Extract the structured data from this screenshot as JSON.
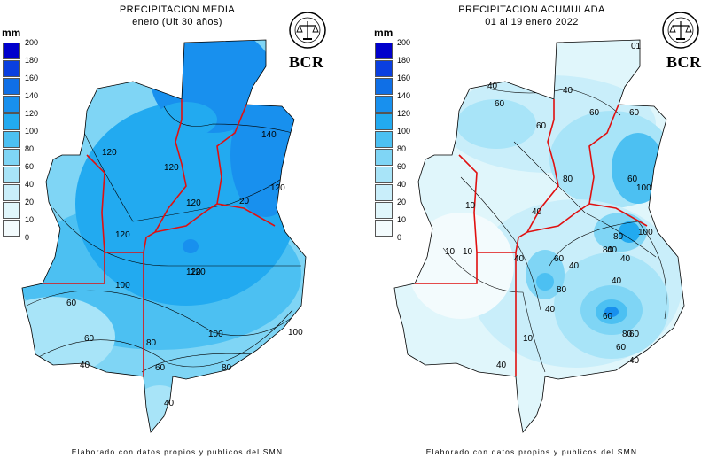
{
  "legend": {
    "unit": "mm",
    "ticks": [
      "200",
      "180",
      "160",
      "140",
      "120",
      "100",
      "80",
      "60",
      "40",
      "20",
      "10",
      "0"
    ],
    "colors": [
      "#0000cc",
      "#0a3fe0",
      "#0f6fe6",
      "#1890ee",
      "#22aaf0",
      "#4cc0f2",
      "#7fd5f5",
      "#a8e4f8",
      "#c9eefa",
      "#e0f6fb",
      "#f3fbfd"
    ]
  },
  "brand": "BCR",
  "seal_name": "bolsa-de-comercio-de-rosario-seal",
  "left_map": {
    "title": "PRECIPITACION MEDIA",
    "subtitle": "enero (Ult 30 años)",
    "isolines": [
      "120",
      "120",
      "140",
      "120",
      "120",
      "120",
      "120",
      "20",
      "120",
      "100",
      "60",
      "100",
      "100",
      "80",
      "60",
      "80",
      "40",
      "40",
      "60"
    ]
  },
  "right_map": {
    "title": "PRECIPITACION ACUMULADA",
    "subtitle": "01 al 19 enero 2022",
    "isolines": [
      "40",
      "60",
      "40",
      "60",
      "60",
      "60",
      "80",
      "10",
      "40",
      "60",
      "100",
      "100",
      "10",
      "40",
      "80",
      "60",
      "40",
      "80",
      "40",
      "60",
      "60",
      "80",
      "60",
      "10",
      "40",
      "40",
      "40",
      "80",
      "40",
      "01",
      "40",
      "10"
    ]
  },
  "footer": "Elaborado con datos propios y publicos del SMN"
}
